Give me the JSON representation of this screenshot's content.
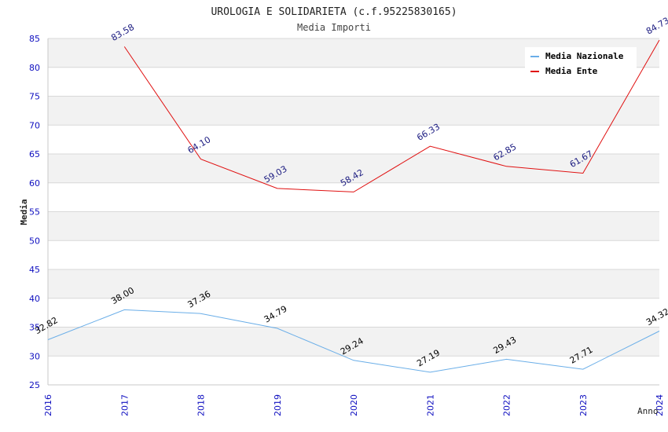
{
  "chart_data": {
    "type": "line",
    "title": "UROLOGIA E SOLIDARIETA (c.f.95225830165)",
    "subtitle": "Media Importi",
    "xlabel": "Anno",
    "ylabel": "Media",
    "x": [
      "2016",
      "2017",
      "2018",
      "2019",
      "2020",
      "2021",
      "2022",
      "2023",
      "2024"
    ],
    "ylim": [
      25,
      85
    ],
    "yticks": [
      25,
      30,
      35,
      40,
      45,
      50,
      55,
      60,
      65,
      70,
      75,
      80,
      85
    ],
    "grid": true,
    "legend_position": "top-right",
    "series": [
      {
        "name": "Media Nazionale",
        "color": "#6aaee8",
        "label_color": "#000000",
        "values": [
          32.82,
          38.0,
          37.36,
          34.79,
          29.24,
          27.19,
          29.43,
          27.71,
          34.32
        ],
        "labels": [
          "32.82",
          "38.00",
          "37.36",
          "34.79",
          "29.24",
          "27.19",
          "29.43",
          "27.71",
          "34.32"
        ]
      },
      {
        "name": "Media Ente",
        "color": "#e01010",
        "label_color": "#1a1a80",
        "values": [
          null,
          83.58,
          64.1,
          59.03,
          58.42,
          66.33,
          62.85,
          61.67,
          84.73
        ],
        "labels": [
          null,
          "83.58",
          "64.10",
          "59.03",
          "58.42",
          "66.33",
          "62.85",
          "61.67",
          "84.73"
        ]
      }
    ],
    "colors": {
      "axis_tick_label": "#1010c0",
      "band": "#f2f2f2",
      "grid": "#d8d8d8"
    }
  }
}
